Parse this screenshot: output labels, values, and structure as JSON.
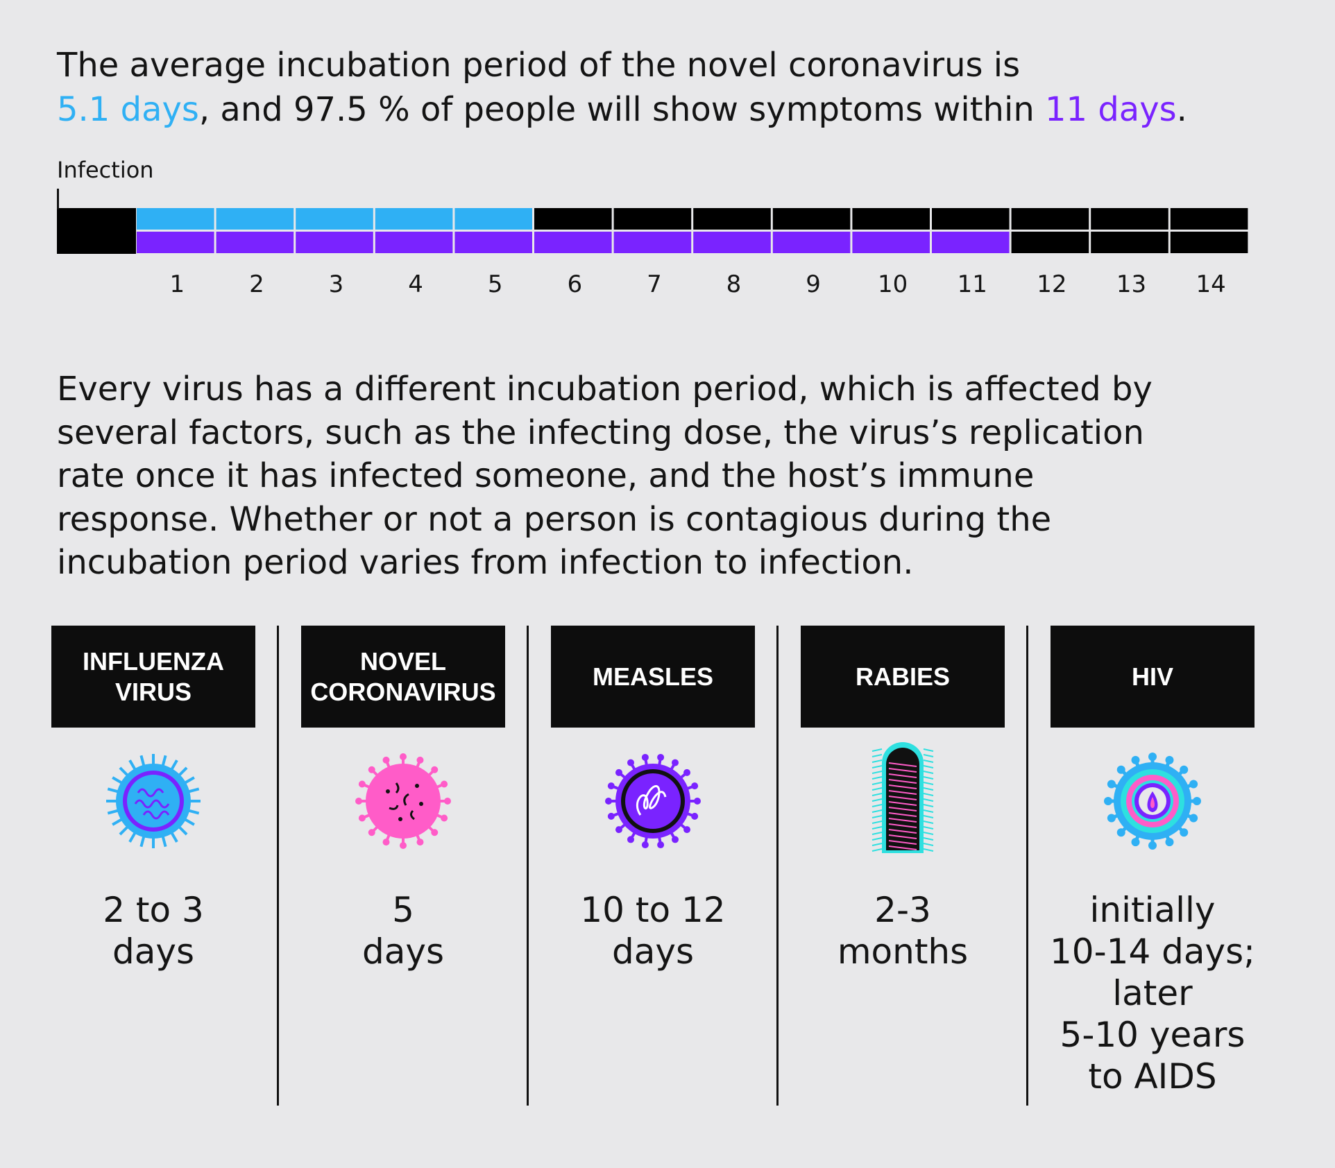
{
  "headline": {
    "line1": "The average incubation period of the novel coronavirus is",
    "highlight1": "5.1 days",
    "middle": ", and 97.5 % of people will show symptoms within",
    "highlight2": "11 days",
    "end": "."
  },
  "timeline": {
    "label": "Infection",
    "days": [
      "1",
      "2",
      "3",
      "4",
      "5",
      "6",
      "7",
      "8",
      "9",
      "10",
      "11",
      "12",
      "13",
      "14"
    ],
    "average_days": 5.1,
    "percentile_97_5_days": 11,
    "colors": {
      "average": "#2fb0f4",
      "percentile": "#7a23ff",
      "base": "#000000"
    }
  },
  "body_text": "Every virus has a different incubation period, which is affected by several factors, such as the infecting dose, the virus’s replication rate once it has infected someone, and the host’s immune response. Whether or not a person is contagious during the incubation period varies from infection to infection.",
  "viruses": [
    {
      "name": "INFLUENZA\nVIRUS",
      "icon": "influenza-virus-icon",
      "value": "2 to 3\ndays"
    },
    {
      "name": "NOVEL\nCORONAVIRUS",
      "icon": "coronavirus-icon",
      "value": "5\ndays"
    },
    {
      "name": "MEASLES",
      "icon": "measles-virus-icon",
      "value": "10 to 12\ndays"
    },
    {
      "name": "RABIES",
      "icon": "rabies-virus-icon",
      "value": "2-3\nmonths"
    },
    {
      "name": "HIV",
      "icon": "hiv-virus-icon",
      "value": "initially\n10-14 days;\nlater\n5-10 years\nto AIDS"
    }
  ]
}
